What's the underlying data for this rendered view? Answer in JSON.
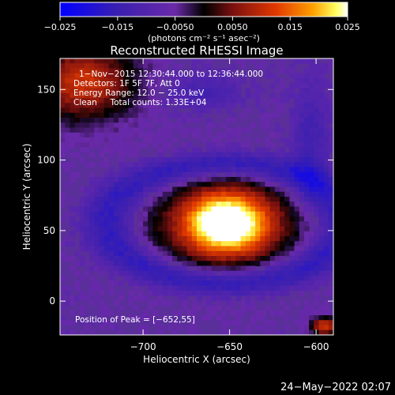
{
  "chart_data": {
    "type": "heatmap",
    "title": "Reconstructed RHESSI Image",
    "xlabel": "Heliocentric X (arcsec)",
    "ylabel": "Heliocentric Y (arcsec)",
    "xlim": [
      -748,
      -590
    ],
    "ylim": [
      -24,
      172
    ],
    "x_ticks": [
      -700,
      -650,
      -600
    ],
    "x_tick_labels": [
      "−700",
      "−650",
      "−600"
    ],
    "y_ticks": [
      0,
      50,
      100,
      150
    ],
    "y_tick_labels": [
      "0",
      "50",
      "100",
      "150"
    ],
    "colorbar": {
      "range": [
        -0.025,
        0.025
      ],
      "ticks": [
        -0.025,
        -0.015,
        -0.005,
        0.005,
        0.015,
        0.025
      ],
      "tick_labels": [
        "−0.025",
        "−0.015",
        "−0.0050",
        "0.0050",
        "0.015",
        "0.025"
      ],
      "unit_label": "(photons cm⁻² s⁻¹ asec⁻²)",
      "colors": [
        "#0000ff",
        "#3a1fb0",
        "#6a2aa8",
        "#000000",
        "#7a1010",
        "#e03800",
        "#ffa000",
        "#ffff60",
        "#ffffff"
      ]
    },
    "peak": {
      "x": -652,
      "y": 55,
      "value": 0.025
    },
    "annotations": [
      "1−Nov−2015 12:30:44.000 to 12:36:44.000",
      "Detectors: 1F 5F 7F, Att 0",
      "Energy Range: 12.0 − 25.0 keV",
      "Clean     Total counts: 1.33E+04",
      "Position of Peak = [−652,55]"
    ]
  },
  "timestamp": "24−May−2022 02:07"
}
